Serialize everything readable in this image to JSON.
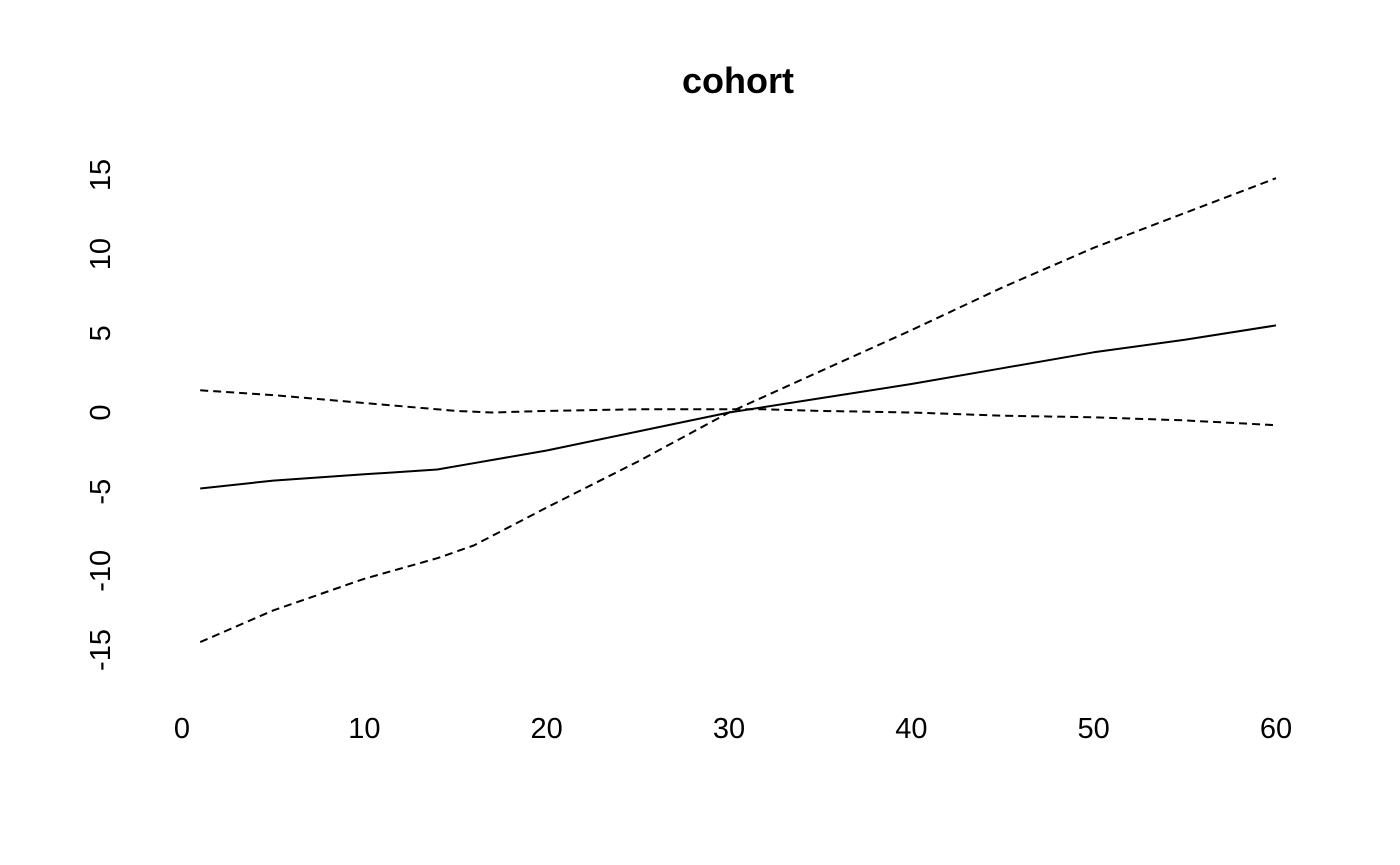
{
  "chart_data": {
    "type": "line",
    "title": "cohort",
    "xlabel": "",
    "ylabel": "",
    "xlim": [
      0,
      60
    ],
    "ylim": [
      -15,
      15
    ],
    "x_ticks": [
      0,
      10,
      20,
      30,
      40,
      50,
      60
    ],
    "y_ticks": [
      -15,
      -10,
      -5,
      0,
      5,
      10,
      15
    ],
    "x_tick_labels": [
      "0",
      "10",
      "20",
      "30",
      "40",
      "50",
      "60"
    ],
    "y_tick_labels": [
      "-15",
      "-10",
      "-5",
      "0",
      "5",
      "10",
      "15"
    ],
    "grid": false,
    "legend": "none",
    "line_color": "#000000",
    "series": [
      {
        "style": "solid",
        "x": [
          1,
          5,
          10,
          14,
          16,
          20,
          25,
          30,
          35,
          40,
          45,
          50,
          55,
          60
        ],
        "values": [
          -4.8,
          -4.3,
          -3.9,
          -3.6,
          -3.2,
          -2.4,
          -1.2,
          0.0,
          0.9,
          1.8,
          2.8,
          3.8,
          4.6,
          5.5
        ]
      },
      {
        "style": "dashed",
        "x": [
          1,
          5,
          10,
          14,
          16,
          20,
          25,
          30,
          35,
          40,
          45,
          50,
          55,
          60
        ],
        "values": [
          -14.5,
          -12.5,
          -10.5,
          -9.2,
          -8.4,
          -6.0,
          -3.1,
          0.0,
          2.6,
          5.2,
          7.9,
          10.4,
          12.6,
          14.8
        ]
      },
      {
        "style": "dashed",
        "x": [
          1,
          5,
          10,
          15,
          17,
          20,
          25,
          30,
          32,
          35,
          40,
          45,
          50,
          55,
          60
        ],
        "values": [
          1.4,
          1.1,
          0.6,
          0.1,
          0.0,
          0.1,
          0.2,
          0.2,
          0.2,
          0.1,
          0.0,
          -0.2,
          -0.3,
          -0.5,
          -0.8
        ]
      }
    ]
  }
}
